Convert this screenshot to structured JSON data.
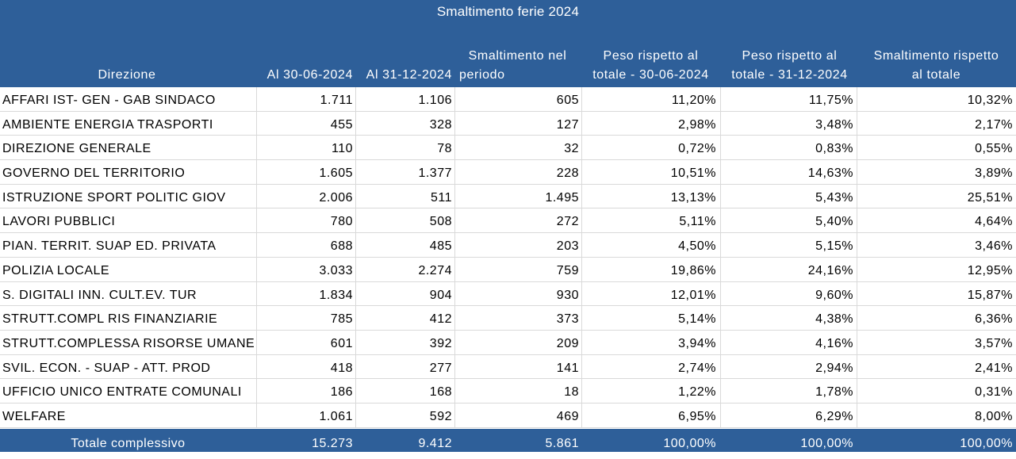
{
  "chart_data": {
    "type": "table",
    "title": "Smaltimento ferie 2024",
    "columns": [
      "Direzione",
      "Al 30-06-2024",
      "Al 31-12-2024",
      [
        "Smaltimento nel",
        "periodo"
      ],
      [
        "Peso rispetto al",
        "totale - 30-06-2024"
      ],
      [
        "Peso rispetto al",
        "totale - 31-12-2024"
      ],
      [
        "Smaltimento rispetto",
        "al totale"
      ]
    ],
    "rows": [
      [
        "AFFARI IST- GEN - GAB SINDACO",
        "1.711",
        "1.106",
        "605",
        "11,20%",
        "11,75%",
        "10,32%"
      ],
      [
        "AMBIENTE ENERGIA TRASPORTI",
        "455",
        "328",
        "127",
        "2,98%",
        "3,48%",
        "2,17%"
      ],
      [
        "DIREZIONE GENERALE",
        "110",
        "78",
        "32",
        "0,72%",
        "0,83%",
        "0,55%"
      ],
      [
        "GOVERNO DEL TERRITORIO",
        "1.605",
        "1.377",
        "228",
        "10,51%",
        "14,63%",
        "3,89%"
      ],
      [
        "ISTRUZIONE  SPORT POLITIC GIOV",
        "2.006",
        "511",
        "1.495",
        "13,13%",
        "5,43%",
        "25,51%"
      ],
      [
        "LAVORI PUBBLICI",
        "780",
        "508",
        "272",
        "5,11%",
        "5,40%",
        "4,64%"
      ],
      [
        "PIAN. TERRIT. SUAP ED. PRIVATA",
        "688",
        "485",
        "203",
        "4,50%",
        "5,15%",
        "3,46%"
      ],
      [
        "POLIZIA LOCALE",
        "3.033",
        "2.274",
        "759",
        "19,86%",
        "24,16%",
        "12,95%"
      ],
      [
        "S. DIGITALI  INN. CULT.EV. TUR",
        "1.834",
        "904",
        "930",
        "12,01%",
        "9,60%",
        "15,87%"
      ],
      [
        "STRUTT.COMPL RIS FINANZIARIE",
        "785",
        "412",
        "373",
        "5,14%",
        "4,38%",
        "6,36%"
      ],
      [
        "STRUTT.COMPLESSA RISORSE UMANE",
        "601",
        "392",
        "209",
        "3,94%",
        "4,16%",
        "3,57%"
      ],
      [
        "SVIL. ECON. - SUAP - ATT. PROD",
        "418",
        "277",
        "141",
        "2,74%",
        "2,94%",
        "2,41%"
      ],
      [
        "UFFICIO UNICO ENTRATE COMUNALI",
        "186",
        "168",
        "18",
        "1,22%",
        "1,78%",
        "0,31%"
      ],
      [
        "WELFARE",
        "1.061",
        "592",
        "469",
        "6,95%",
        "6,29%",
        "8,00%"
      ]
    ],
    "total": [
      "Totale complessivo",
      "15.273",
      "9.412",
      "5.861",
      "100,00%",
      "100,00%",
      "100,00%"
    ],
    "header_color": "#2e5f99",
    "header_text_color": "#ffffff",
    "grid_color": "#d9d9d9"
  }
}
